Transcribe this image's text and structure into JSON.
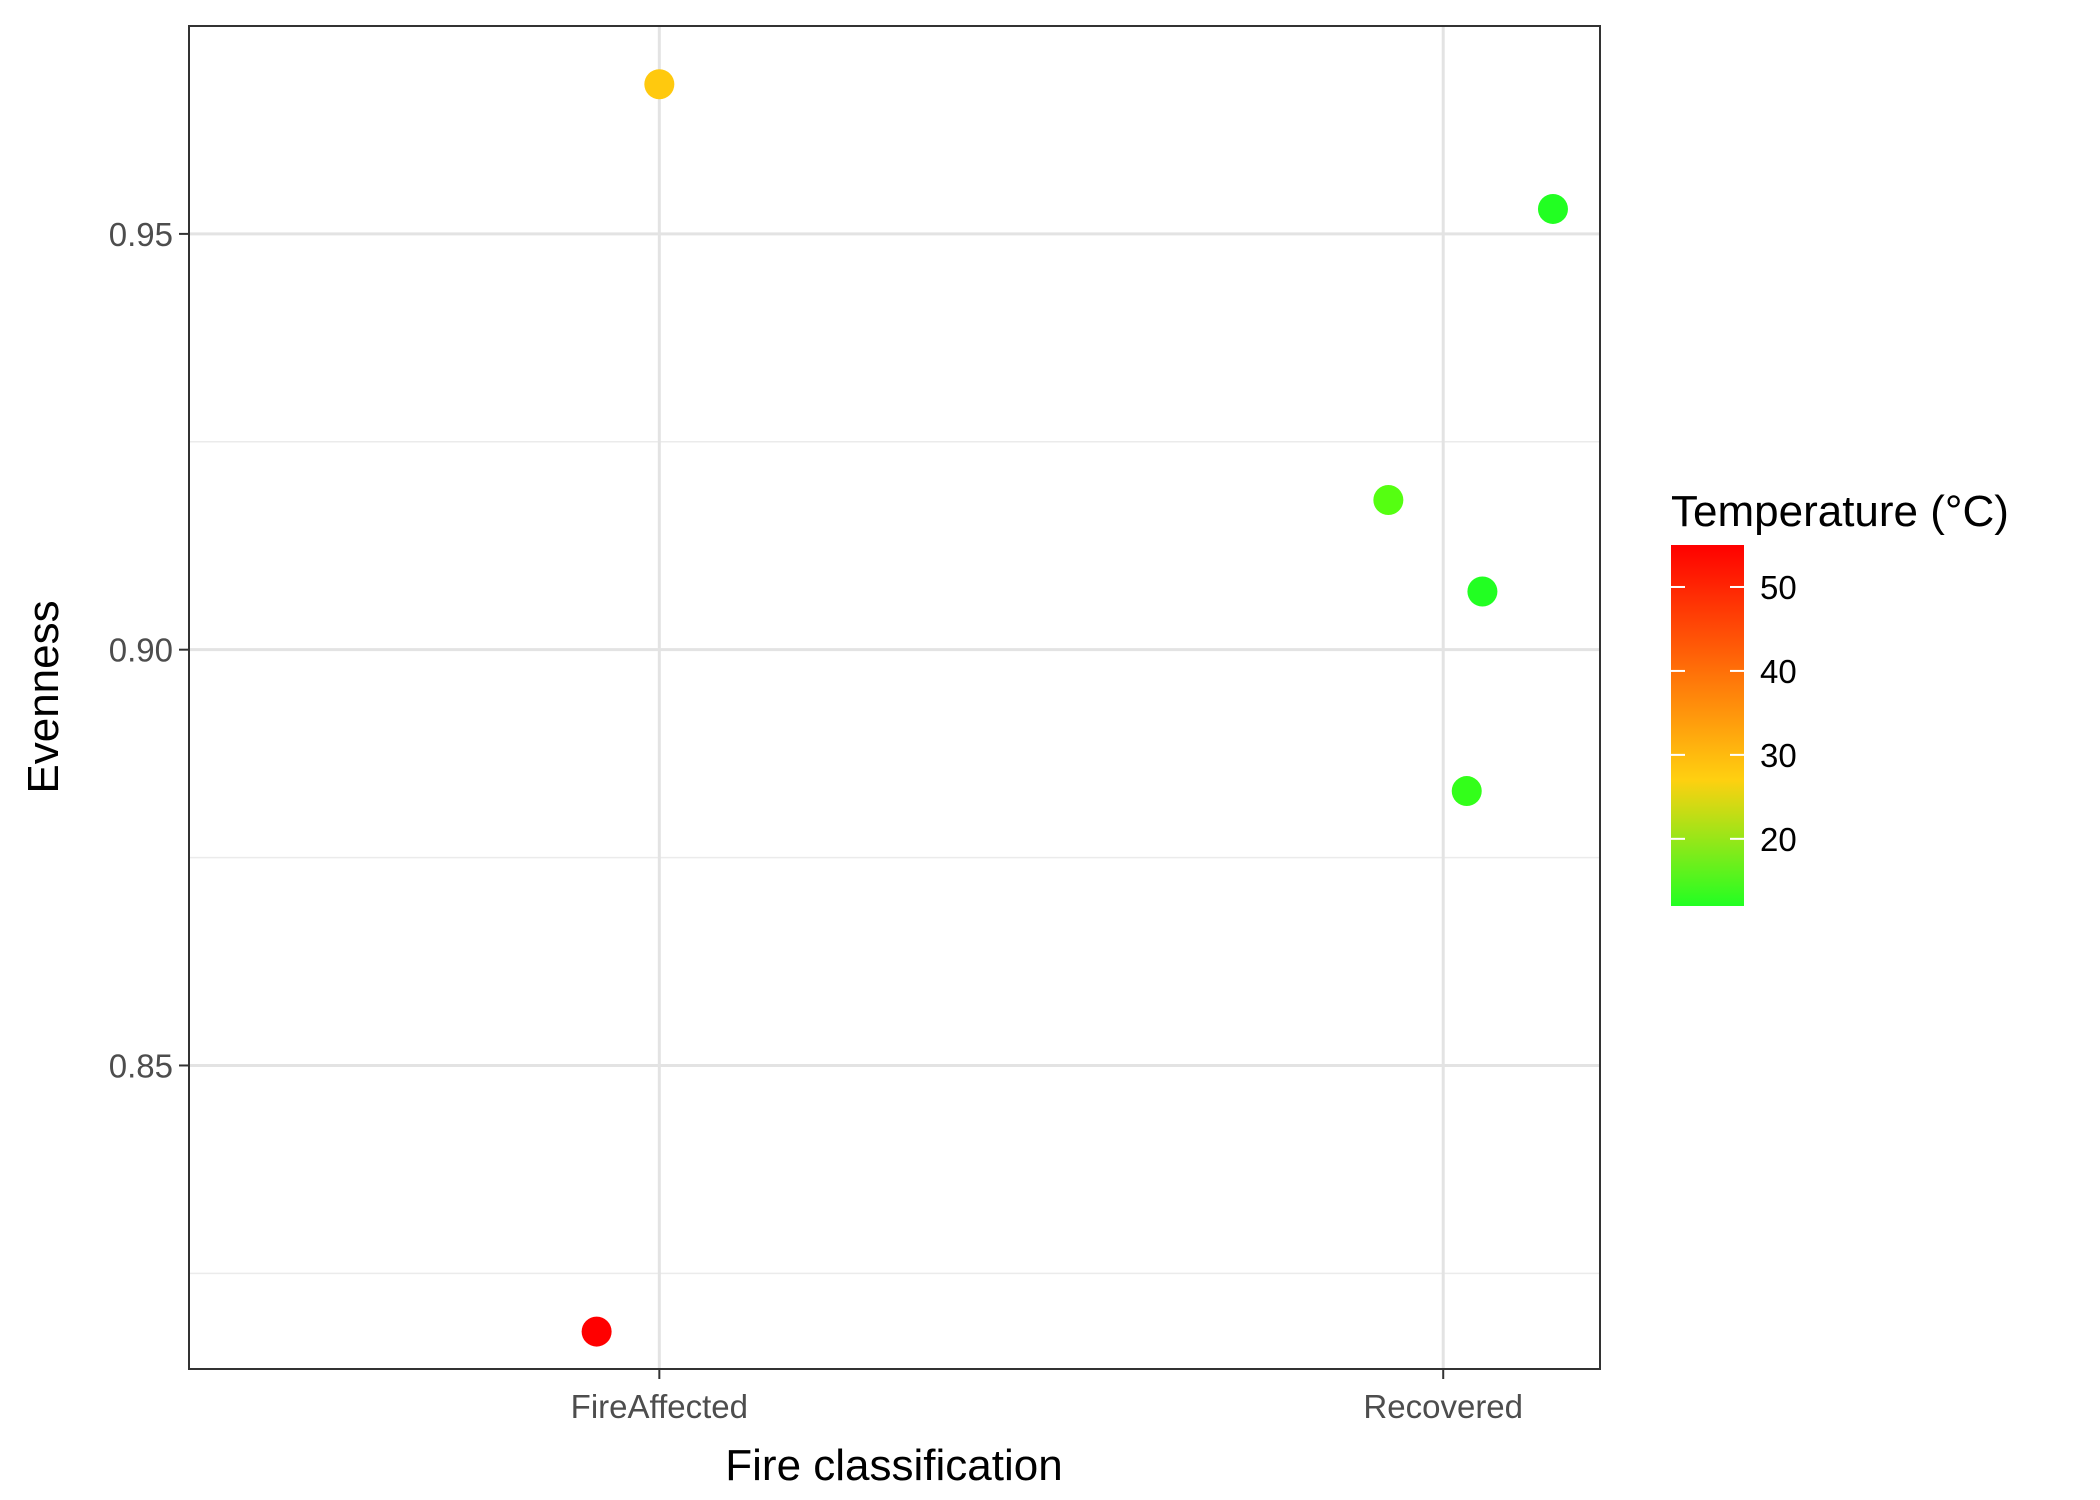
{
  "chart_data": {
    "type": "scatter",
    "title": "",
    "xlabel": "Fire classification",
    "ylabel": "Evenness",
    "categories": [
      "FireAffected",
      "Recovered"
    ],
    "ylim": [
      0.8135,
      0.975
    ],
    "y_ticks": [
      0.85,
      0.9,
      0.95
    ],
    "y_tick_labels": [
      "0.85",
      "0.90",
      "0.95"
    ],
    "grid": true,
    "legend": {
      "title": "Temperature (°C)",
      "placement": "right",
      "type": "colorbar",
      "range": [
        12,
        55
      ],
      "ticks": [
        20,
        30,
        40,
        50
      ],
      "tick_labels": [
        "20",
        "30",
        "40",
        "50"
      ],
      "low_color": "#22FF22",
      "mid_color": "#FFD010",
      "high_color": "#FF0000"
    },
    "points": [
      {
        "category": "FireAffected",
        "jitter": 0.0,
        "y": 0.968,
        "temperature": 26,
        "color": "#FFC90E"
      },
      {
        "category": "FireAffected",
        "jitter": -0.08,
        "y": 0.818,
        "temperature": 55,
        "color": "#FF0000"
      },
      {
        "category": "Recovered",
        "jitter": 0.14,
        "y": 0.953,
        "temperature": 14,
        "color": "#22FF22"
      },
      {
        "category": "Recovered",
        "jitter": -0.07,
        "y": 0.918,
        "temperature": 17,
        "color": "#55FF11"
      },
      {
        "category": "Recovered",
        "jitter": 0.05,
        "y": 0.907,
        "temperature": 14,
        "color": "#22FF22"
      },
      {
        "category": "Recovered",
        "jitter": 0.03,
        "y": 0.883,
        "temperature": 15,
        "color": "#33FF1A"
      }
    ]
  }
}
